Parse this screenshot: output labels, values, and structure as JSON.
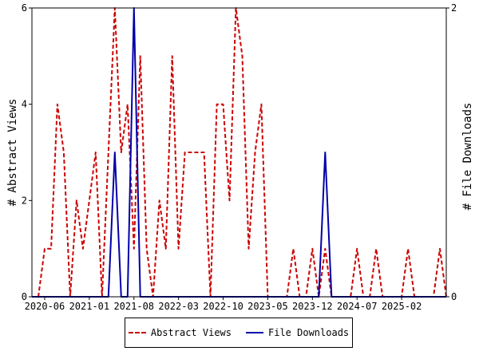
{
  "chart_data": {
    "type": "line",
    "x_tick_labels": [
      "2020-06",
      "2021-01",
      "2021-08",
      "2022-03",
      "2022-10",
      "2023-05",
      "2023-12",
      "2024-07",
      "2025-02"
    ],
    "x_ticks": [
      "2020-06",
      "2021-01",
      "2021-08",
      "2022-03",
      "2022-10",
      "2023-05",
      "2023-12",
      "2024-07",
      "2025-02"
    ],
    "x_range": [
      "2020-04",
      "2025-09"
    ],
    "ylabel": "# Abstract Views",
    "ylabel_right": "# File Downloads",
    "ylim": [
      0,
      6
    ],
    "ylim_right": [
      0,
      2
    ],
    "yticks": [
      0,
      2,
      4,
      6
    ],
    "yticks_right": [
      0,
      2
    ],
    "grid": false,
    "legend_position": "bottom",
    "series": [
      {
        "name": "Abstract Views",
        "axis": "left",
        "color": "#cc0000",
        "style": "dashed",
        "x": [
          "2020-04",
          "2020-05",
          "2020-06",
          "2020-07",
          "2020-08",
          "2020-09",
          "2020-10",
          "2020-11",
          "2020-12",
          "2021-01",
          "2021-02",
          "2021-03",
          "2021-04",
          "2021-05",
          "2021-06",
          "2021-07",
          "2021-08",
          "2021-09",
          "2021-10",
          "2021-11",
          "2021-12",
          "2022-01",
          "2022-02",
          "2022-03",
          "2022-04",
          "2022-05",
          "2022-06",
          "2022-07",
          "2022-08",
          "2022-09",
          "2022-10",
          "2022-11",
          "2022-12",
          "2023-01",
          "2023-02",
          "2023-03",
          "2023-04",
          "2023-05",
          "2023-06",
          "2023-07",
          "2023-08",
          "2023-09",
          "2023-10",
          "2023-11",
          "2023-12",
          "2024-01",
          "2024-02",
          "2024-03",
          "2024-04",
          "2024-05",
          "2024-06",
          "2024-07",
          "2024-08",
          "2024-09",
          "2024-10",
          "2024-11",
          "2024-12",
          "2025-01",
          "2025-02",
          "2025-03",
          "2025-04",
          "2025-05",
          "2025-06",
          "2025-07",
          "2025-08",
          "2025-09"
        ],
        "values": [
          0,
          0,
          1,
          1,
          4,
          3,
          0,
          2,
          1,
          2,
          3,
          0,
          3,
          6,
          3,
          4,
          1,
          5,
          1,
          0,
          2,
          1,
          5,
          1,
          3,
          3,
          3,
          3,
          0,
          4,
          4,
          2,
          6,
          5,
          1,
          3,
          4,
          0,
          0,
          0,
          0,
          1,
          0,
          0,
          1,
          0,
          1,
          0,
          0,
          0,
          0,
          1,
          0,
          0,
          1,
          0,
          0,
          0,
          0,
          1,
          0,
          0,
          0,
          0,
          1,
          0
        ]
      },
      {
        "name": "File Downloads",
        "axis": "right",
        "color": "#0000aa",
        "style": "solid",
        "x": [
          "2020-04",
          "2020-05",
          "2020-06",
          "2020-07",
          "2020-08",
          "2020-09",
          "2020-10",
          "2020-11",
          "2020-12",
          "2021-01",
          "2021-02",
          "2021-03",
          "2021-04",
          "2021-05",
          "2021-06",
          "2021-07",
          "2021-08",
          "2021-09",
          "2021-10",
          "2021-11",
          "2021-12",
          "2022-01",
          "2022-02",
          "2022-03",
          "2022-04",
          "2022-05",
          "2022-06",
          "2022-07",
          "2022-08",
          "2022-09",
          "2022-10",
          "2022-11",
          "2022-12",
          "2023-01",
          "2023-02",
          "2023-03",
          "2023-04",
          "2023-05",
          "2023-06",
          "2023-07",
          "2023-08",
          "2023-09",
          "2023-10",
          "2023-11",
          "2023-12",
          "2024-01",
          "2024-02",
          "2024-03",
          "2024-04",
          "2024-05",
          "2024-06",
          "2024-07",
          "2024-08",
          "2024-09",
          "2024-10",
          "2024-11",
          "2024-12",
          "2025-01",
          "2025-02",
          "2025-03",
          "2025-04",
          "2025-05",
          "2025-06",
          "2025-07",
          "2025-08",
          "2025-09"
        ],
        "values": [
          0,
          0,
          0,
          0,
          0,
          0,
          0,
          0,
          0,
          0,
          0,
          0,
          0,
          1,
          0,
          0,
          2,
          0,
          0,
          0,
          0,
          0,
          0,
          0,
          0,
          0,
          0,
          0,
          0,
          0,
          0,
          0,
          0,
          0,
          0,
          0,
          0,
          0,
          0,
          0,
          0,
          0,
          0,
          0,
          0,
          0,
          1,
          0,
          0,
          0,
          0,
          0,
          0,
          0,
          0,
          0,
          0,
          0,
          0,
          0,
          0,
          0,
          0,
          0,
          0,
          0
        ]
      }
    ]
  }
}
